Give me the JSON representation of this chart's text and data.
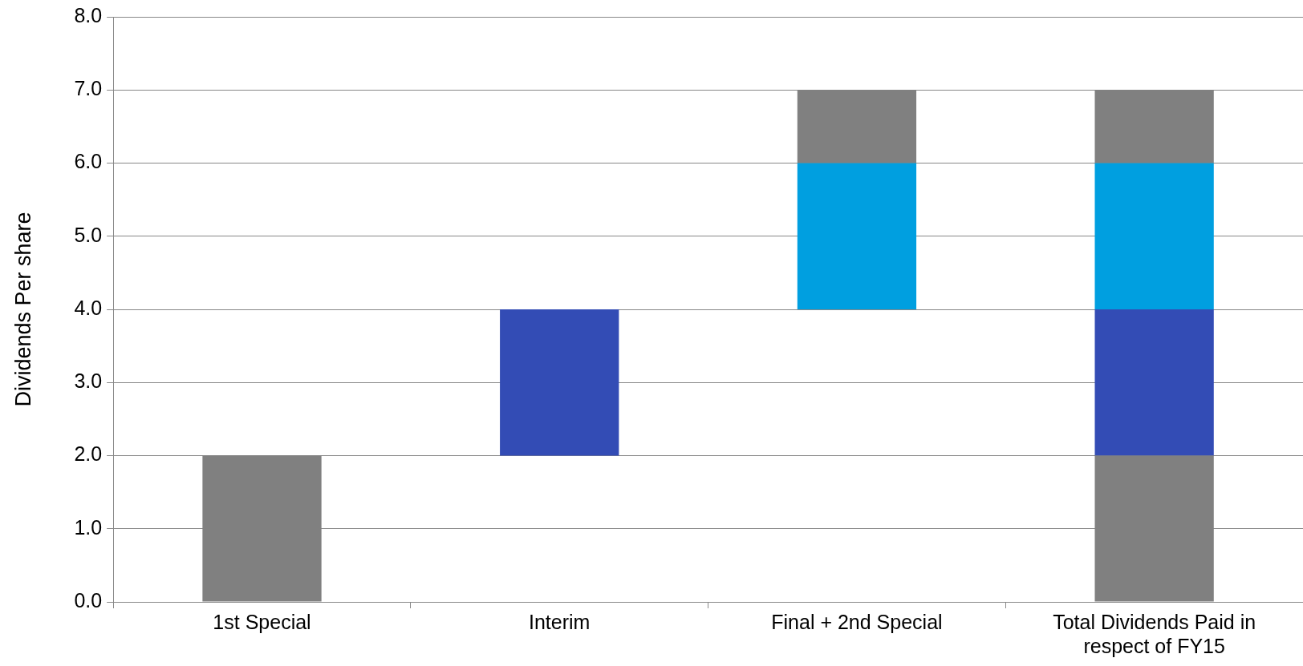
{
  "chart_data": {
    "type": "bar",
    "ylabel": "Dividends Per share",
    "categories": [
      "1st Special",
      "Interim",
      "Final + 2nd Special",
      "Total Dividends Paid in respect of FY15"
    ],
    "series": [
      {
        "color": "#808080",
        "base": [
          0,
          null,
          null,
          0
        ],
        "values": [
          2,
          null,
          null,
          2
        ]
      },
      {
        "color": "#334cb5",
        "base": [
          null,
          2,
          null,
          2
        ],
        "values": [
          null,
          2,
          null,
          2
        ]
      },
      {
        "color": "#009fe0",
        "base": [
          null,
          null,
          4,
          4
        ],
        "values": [
          null,
          null,
          2,
          2
        ]
      },
      {
        "color": "#808080",
        "base": [
          null,
          null,
          6,
          6
        ],
        "values": [
          null,
          null,
          1,
          1
        ]
      }
    ],
    "ylim": [
      0,
      8
    ],
    "yticks": [
      {
        "value": 0,
        "label": "0.0"
      },
      {
        "value": 1,
        "label": "1.0"
      },
      {
        "value": 2,
        "label": "2.0"
      },
      {
        "value": 3,
        "label": "3.0"
      },
      {
        "value": 4,
        "label": "4.0"
      },
      {
        "value": 5,
        "label": "5.0"
      },
      {
        "value": 6,
        "label": "6.0"
      },
      {
        "value": 7,
        "label": "7.0"
      },
      {
        "value": 8,
        "label": "8.0"
      }
    ],
    "grid": "y",
    "legend": false
  }
}
